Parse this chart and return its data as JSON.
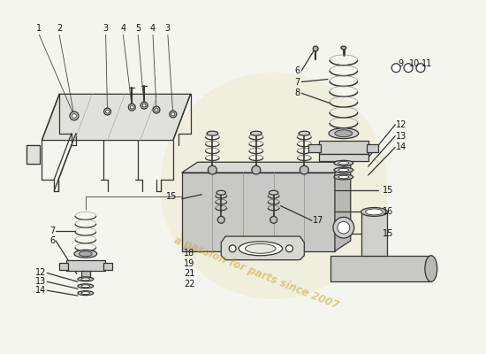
{
  "bg_color": "#f5f5f0",
  "watermark_text": "a passion for parts since 2007",
  "watermark_color": "#c8a020",
  "watermark_alpha": 0.5,
  "line_color": "#333333",
  "label_color": "#111111",
  "lw": 0.9,
  "font_size_label": 7.0
}
